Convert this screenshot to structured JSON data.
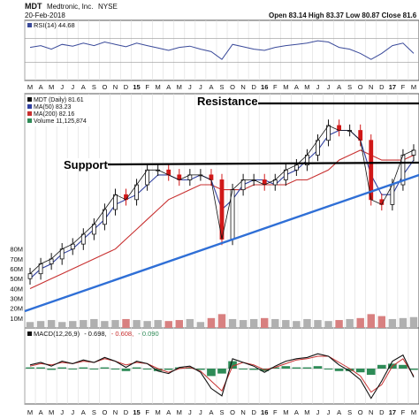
{
  "header": {
    "symbol": "MDT",
    "company": "Medtronic, Inc.",
    "exchange": "NYSE",
    "date": "20-Feb-2018",
    "quote": "Open 83.14 High 83.37 Low 80.87 Close 81.6"
  },
  "rsi_panel": {
    "legend": "RSI(14) 44.68",
    "line_color": "#3a4a9a"
  },
  "price_panel": {
    "legend_price": "MDT (Daily) 81.61",
    "legend_ma50": "MA(50) 83.23",
    "legend_ma200": "MA(200) 82.16",
    "legend_volume": "Volume 11,125,874",
    "resistance_label": "Resistance",
    "support_label": "Support",
    "volume_ticks": [
      "80M",
      "70M",
      "60M",
      "50M",
      "40M",
      "30M",
      "20M",
      "10M"
    ]
  },
  "macd_panel": {
    "legend_prefix": "MACD(12,26,9)",
    "macd_value": "- 0.698,",
    "signal_value": "- 0.608,",
    "histogram_value": "- 0.090"
  },
  "axis": {
    "months": [
      "M",
      "A",
      "M",
      "J",
      "J",
      "A",
      "S",
      "O",
      "N",
      "D",
      "15",
      "F",
      "M",
      "A",
      "M",
      "J",
      "J",
      "A",
      "S",
      "O",
      "N",
      "D",
      "16",
      "F",
      "M",
      "A",
      "M",
      "J",
      "J",
      "A",
      "S",
      "O",
      "N",
      "D",
      "17",
      "F",
      "M"
    ],
    "year_labels": [
      "15",
      "16",
      "17"
    ]
  },
  "colors": {
    "price_up": "#111111",
    "price_down": "#d01818",
    "ma50": "#3040a0",
    "ma200": "#c83030",
    "trend_line": "#2f6fd6",
    "sr_line": "#000000",
    "volume_up": "#b0b0b0",
    "volume_down": "#d88080",
    "macd_line": "#111111",
    "signal_line": "#c83030",
    "histogram": "#2e8b57"
  },
  "chart_data": {
    "type": "line",
    "x": [
      "2014-03",
      "2014-04",
      "2014-05",
      "2014-06",
      "2014-07",
      "2014-08",
      "2014-09",
      "2014-10",
      "2014-11",
      "2014-12",
      "2015-01",
      "2015-02",
      "2015-03",
      "2015-04",
      "2015-05",
      "2015-06",
      "2015-07",
      "2015-08",
      "2015-09",
      "2015-10",
      "2015-11",
      "2015-12",
      "2016-01",
      "2016-02",
      "2016-03",
      "2016-04",
      "2016-05",
      "2016-06",
      "2016-07",
      "2016-08",
      "2016-09",
      "2016-10",
      "2016-11",
      "2016-12",
      "2017-01",
      "2017-02",
      "2017-03"
    ],
    "series": [
      {
        "name": "MDT (Daily)",
        "values": [
          57,
          59,
          60,
          62,
          63,
          65,
          67,
          70,
          73,
          72,
          75,
          78,
          78,
          77,
          76,
          77,
          77,
          76,
          64,
          74,
          76,
          76,
          75,
          76,
          78,
          79,
          81,
          84,
          87,
          86,
          86,
          84,
          72,
          71,
          75,
          81,
          82
        ]
      },
      {
        "name": "MA(50)",
        "values": [
          56,
          58,
          59,
          61,
          62,
          64,
          66,
          68,
          71,
          72,
          73,
          75,
          77,
          77,
          76,
          76,
          77,
          76,
          70,
          72,
          75,
          76,
          76,
          75,
          77,
          78,
          80,
          82,
          85,
          86,
          86,
          84,
          77,
          73,
          73,
          77,
          80
        ]
      },
      {
        "name": "MA(200)",
        "values": [
          54,
          55,
          56,
          57,
          58,
          59,
          60,
          61,
          62,
          64,
          66,
          68,
          70,
          72,
          73,
          74,
          75,
          75,
          74,
          74,
          74,
          75,
          75,
          75,
          75,
          76,
          76,
          77,
          78,
          80,
          81,
          82,
          81,
          80,
          80,
          80,
          81
        ]
      },
      {
        "name": "RSI(14)",
        "values": [
          55,
          58,
          52,
          60,
          57,
          62,
          58,
          64,
          60,
          56,
          62,
          58,
          54,
          50,
          55,
          57,
          52,
          48,
          35,
          60,
          56,
          52,
          50,
          55,
          58,
          60,
          62,
          66,
          64,
          55,
          52,
          45,
          35,
          45,
          58,
          62,
          45
        ]
      },
      {
        "name": "Volume",
        "values": [
          6,
          7,
          8,
          6,
          7,
          8,
          9,
          7,
          8,
          9,
          8,
          7,
          8,
          7,
          8,
          9,
          6,
          10,
          14,
          9,
          8,
          9,
          10,
          9,
          8,
          7,
          9,
          8,
          7,
          8,
          9,
          10,
          14,
          12,
          9,
          10,
          11
        ]
      },
      {
        "name": "MACD(12,26,9)",
        "values": [
          0.3,
          0.5,
          0.2,
          0.6,
          0.4,
          0.7,
          0.5,
          0.9,
          0.6,
          0.1,
          0.6,
          0.4,
          -0.2,
          -0.4,
          0.1,
          0.2,
          -0.3,
          -1.6,
          -2.2,
          0.8,
          0.5,
          0.2,
          -0.3,
          0.2,
          0.6,
          0.8,
          0.9,
          1.2,
          1.0,
          0.3,
          -0.2,
          -0.9,
          -2.4,
          -1.0,
          0.6,
          1.1,
          -0.7
        ]
      },
      {
        "name": "Signal",
        "values": [
          0.2,
          0.4,
          0.3,
          0.5,
          0.4,
          0.6,
          0.5,
          0.8,
          0.6,
          0.3,
          0.5,
          0.4,
          0.0,
          -0.3,
          0.0,
          0.1,
          -0.2,
          -1.0,
          -1.8,
          0.2,
          0.5,
          0.3,
          -0.1,
          0.1,
          0.4,
          0.7,
          0.8,
          1.0,
          1.0,
          0.5,
          0.0,
          -0.6,
          -1.9,
          -1.3,
          0.2,
          0.8,
          -0.6
        ]
      }
    ],
    "price_ylim": [
      48,
      92
    ],
    "annotations": [
      {
        "label": "Resistance",
        "level": 88
      },
      {
        "label": "Support",
        "level": 77.5
      }
    ],
    "grid": true,
    "legend": "top-left"
  }
}
